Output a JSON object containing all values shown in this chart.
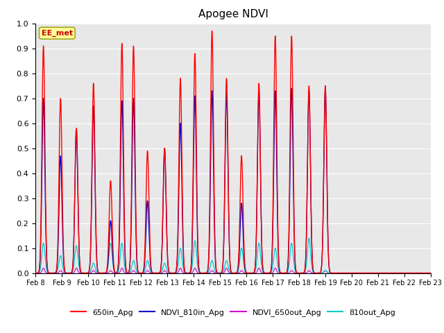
{
  "title": "Apogee NDVI",
  "x_labels": [
    "Feb 8",
    "Feb 9",
    "Feb 10",
    "Feb 11",
    "Feb 12",
    "Feb 13",
    "Feb 14",
    "Feb 15",
    "Feb 16",
    "Feb 17",
    "Feb 18",
    "Feb 19",
    "Feb 20",
    "Feb 21",
    "Feb 22",
    "Feb 23"
  ],
  "ylim": [
    0.0,
    1.0
  ],
  "yticks": [
    0.0,
    0.1,
    0.2,
    0.3,
    0.4,
    0.5,
    0.6,
    0.7,
    0.8,
    0.9,
    1.0
  ],
  "legend_labels": [
    "650in_Apg",
    "NDVI_810in_Apg",
    "NDVI_650out_Apg",
    "810out_Apg"
  ],
  "legend_colors": [
    "#ff0000",
    "#0000cc",
    "#cc00cc",
    "#00cccc"
  ],
  "line_colors": {
    "red": "#ff0000",
    "blue": "#0000cc",
    "magenta": "#cc00cc",
    "cyan": "#00cccc"
  },
  "annotation_text": "EE_met",
  "annotation_color": "#cc0000",
  "annotation_bg": "#ffff99",
  "bg_color": "#e8e8e8",
  "figsize": [
    6.4,
    4.8
  ],
  "dpi": 100,
  "peak_positions": [
    0.3,
    0.95,
    1.55,
    2.2,
    2.85,
    3.28,
    3.72,
    4.25,
    4.9,
    5.5,
    6.05,
    6.7,
    7.25,
    7.82,
    8.48,
    9.1,
    9.72,
    10.38,
    11.0,
    11.62,
    12.22,
    12.82,
    13.45,
    14.05,
    14.65
  ],
  "peak_h_red": [
    0.91,
    0.7,
    0.58,
    0.76,
    0.37,
    0.92,
    0.91,
    0.49,
    0.5,
    0.78,
    0.88,
    0.97,
    0.78,
    0.47,
    0.76,
    0.95,
    0.95,
    0.75,
    0.75,
    0.0,
    0.0,
    0.0,
    0.0,
    0.0,
    0.0
  ],
  "peak_h_blue": [
    0.7,
    0.47,
    0.58,
    0.67,
    0.21,
    0.69,
    0.7,
    0.29,
    0.5,
    0.6,
    0.71,
    0.73,
    0.72,
    0.28,
    0.73,
    0.73,
    0.74,
    0.73,
    0.74,
    0.0,
    0.0,
    0.0,
    0.0,
    0.0,
    0.0
  ],
  "peak_h_cyan": [
    0.12,
    0.07,
    0.11,
    0.04,
    0.12,
    0.12,
    0.05,
    0.05,
    0.04,
    0.1,
    0.13,
    0.05,
    0.05,
    0.1,
    0.12,
    0.1,
    0.12,
    0.14,
    0.01,
    0.0,
    0.0,
    0.0,
    0.0,
    0.0,
    0.0
  ],
  "peak_h_mag": [
    0.02,
    0.01,
    0.02,
    0.01,
    0.01,
    0.02,
    0.01,
    0.01,
    0.01,
    0.02,
    0.02,
    0.01,
    0.02,
    0.01,
    0.02,
    0.02,
    0.01,
    0.01,
    0.01,
    0.0,
    0.0,
    0.0,
    0.0,
    0.0,
    0.0
  ]
}
